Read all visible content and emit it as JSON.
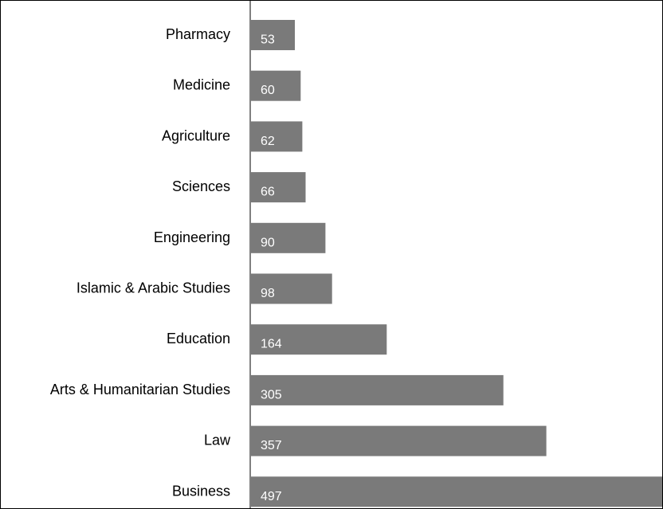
{
  "chart_data": {
    "type": "bar",
    "orientation": "horizontal",
    "categories": [
      "Pharmacy",
      "Medicine",
      "Agriculture",
      "Sciences",
      "Engineering",
      "Islamic & Arabic Studies",
      "Education",
      "Arts & Humanitarian Studies",
      "Law",
      "Business"
    ],
    "values": [
      53,
      60,
      62,
      66,
      90,
      98,
      164,
      305,
      357,
      497
    ],
    "value_labels": [
      "53",
      "60",
      "62",
      "66",
      "90",
      "98",
      "164",
      "305",
      "357",
      "497"
    ],
    "title": "",
    "xlabel": "",
    "ylabel": "",
    "xlim": [
      0,
      497
    ],
    "grid": false,
    "legend": "none",
    "bar_color": "#7a7a7a",
    "value_label_color": "#ffffff"
  }
}
